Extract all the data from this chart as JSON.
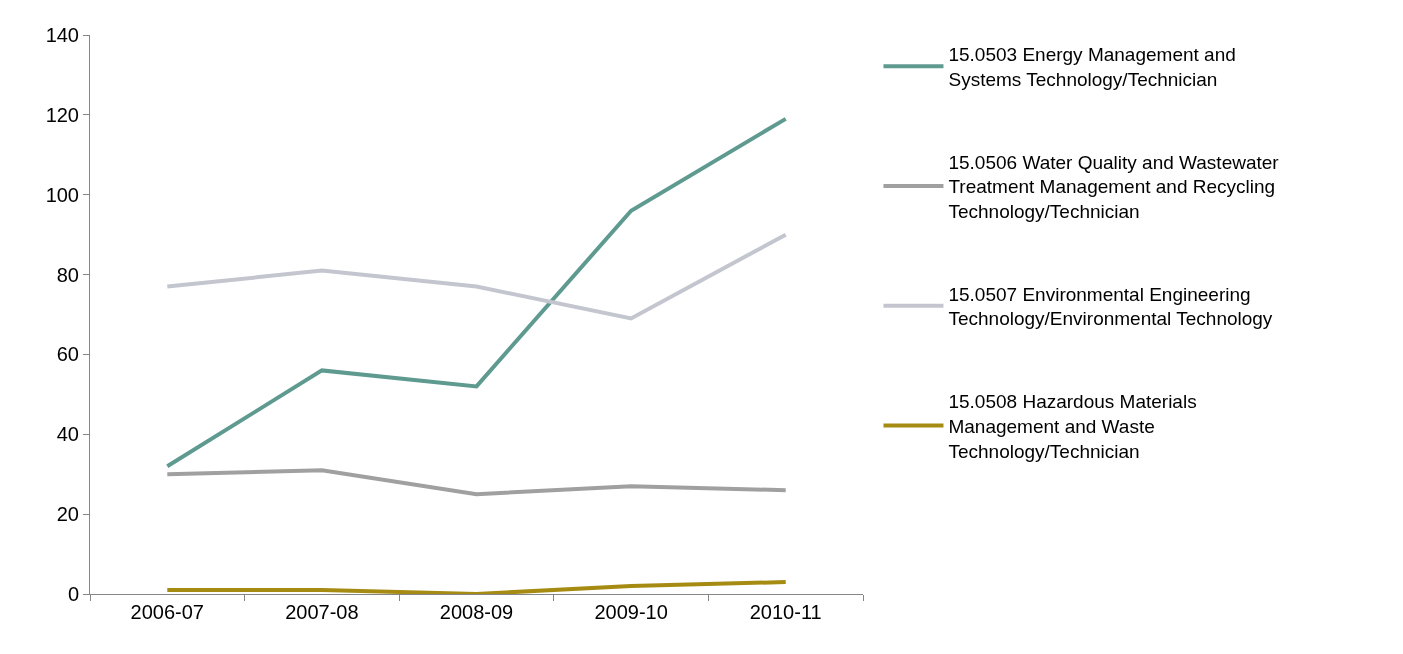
{
  "chart_data": {
    "type": "line",
    "categories": [
      "2006-07",
      "2007-08",
      "2008-09",
      "2009-10",
      "2010-11"
    ],
    "series": [
      {
        "name": "15.0503 Energy Management and Systems Technology/Technician",
        "color": "#5f9a91",
        "values": [
          32,
          56,
          52,
          96,
          119
        ]
      },
      {
        "name": "15.0506 Water Quality and Wastewater Treatment Management and Recycling Technology/Technician",
        "color": "#a0a0a0",
        "values": [
          30,
          31,
          25,
          27,
          26
        ]
      },
      {
        "name": "15.0507 Environmental Engineering Technology/Environmental Technology",
        "color": "#c3c6ce",
        "values": [
          77,
          81,
          77,
          69,
          90
        ]
      },
      {
        "name": "15.0508 Hazardous Materials Management and Waste Technology/Technician",
        "color": "#a68b12",
        "values": [
          1,
          1,
          0,
          2,
          3
        ]
      }
    ],
    "ylim": [
      0,
      140
    ],
    "yticks": [
      0,
      20,
      40,
      60,
      80,
      100,
      120,
      140
    ],
    "legend": "right",
    "marker": "none",
    "line_style": "solid"
  }
}
